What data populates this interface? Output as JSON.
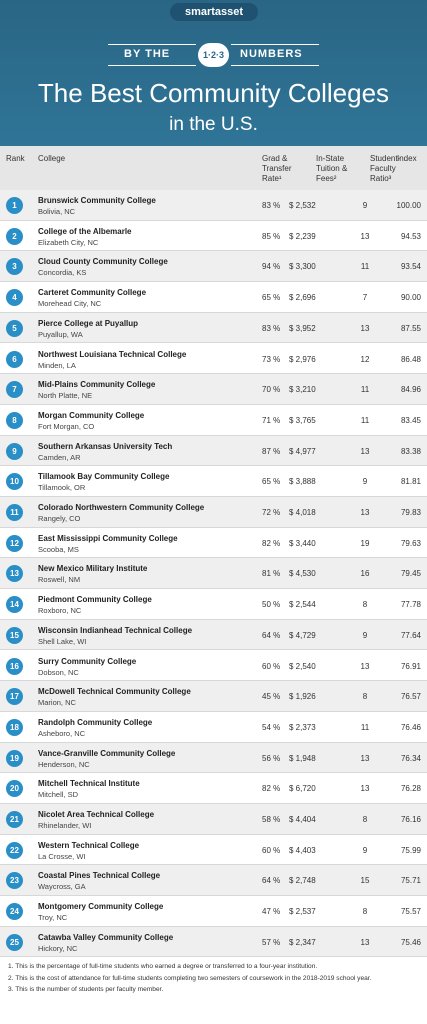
{
  "header": {
    "logo": "smartasset",
    "banner_left": "BY THE",
    "banner_badge": "1·2·3",
    "banner_right": "NUMBERS",
    "title": "The Best Community Colleges",
    "title_line2": "in the U.S."
  },
  "table": {
    "columns": [
      "Rank",
      "College",
      "Grad & Transfer Rate¹",
      "In-State Tuition & Fees²",
      "Student-Faculty Ratio³",
      "Index"
    ],
    "rows": [
      [
        "1",
        "Brunswick Community College",
        "Bolivia, NC",
        "83 %",
        "$ 2,532",
        "9",
        "100.00"
      ],
      [
        "2",
        "College of the Albemarle",
        "Elizabeth City, NC",
        "85 %",
        "$ 2,239",
        "13",
        "94.53"
      ],
      [
        "3",
        "Cloud County Community College",
        "Concordia, KS",
        "94 %",
        "$ 3,300",
        "11",
        "93.54"
      ],
      [
        "4",
        "Carteret Community College",
        "Morehead City, NC",
        "65 %",
        "$ 2,696",
        "7",
        "90.00"
      ],
      [
        "5",
        "Pierce College at Puyallup",
        "Puyallup, WA",
        "83 %",
        "$ 3,952",
        "13",
        "87.55"
      ],
      [
        "6",
        "Northwest Louisiana Technical College",
        "Minden, LA",
        "73 %",
        "$ 2,976",
        "12",
        "86.48"
      ],
      [
        "7",
        "Mid-Plains Community College",
        "North Platte, NE",
        "70 %",
        "$ 3,210",
        "11",
        "84.96"
      ],
      [
        "8",
        "Morgan Community College",
        "Fort Morgan, CO",
        "71 %",
        "$ 3,765",
        "11",
        "83.45"
      ],
      [
        "9",
        "Southern Arkansas University Tech",
        "Camden, AR",
        "87 %",
        "$ 4,977",
        "13",
        "83.38"
      ],
      [
        "10",
        "Tillamook Bay Community College",
        "Tillamook, OR",
        "65 %",
        "$ 3,888",
        "9",
        "81.81"
      ],
      [
        "11",
        "Colorado Northwestern Community College",
        "Rangely, CO",
        "72 %",
        "$ 4,018",
        "13",
        "79.83"
      ],
      [
        "12",
        "East Mississippi Community College",
        "Scooba, MS",
        "82 %",
        "$ 3,440",
        "19",
        "79.63"
      ],
      [
        "13",
        "New Mexico Military Institute",
        "Roswell, NM",
        "81 %",
        "$ 4,530",
        "16",
        "79.45"
      ],
      [
        "14",
        "Piedmont Community College",
        "Roxboro, NC",
        "50 %",
        "$ 2,544",
        "8",
        "77.78"
      ],
      [
        "15",
        "Wisconsin Indianhead Technical College",
        "Shell Lake, WI",
        "64 %",
        "$ 4,729",
        "9",
        "77.64"
      ],
      [
        "16",
        "Surry Community College",
        "Dobson, NC",
        "60 %",
        "$ 2,540",
        "13",
        "76.91"
      ],
      [
        "17",
        "McDowell Technical Community College",
        "Marion, NC",
        "45 %",
        "$ 1,926",
        "8",
        "76.57"
      ],
      [
        "18",
        "Randolph Community College",
        "Asheboro, NC",
        "54 %",
        "$ 2,373",
        "11",
        "76.46"
      ],
      [
        "19",
        "Vance-Granville Community College",
        "Henderson, NC",
        "56 %",
        "$ 1,948",
        "13",
        "76.34"
      ],
      [
        "20",
        "Mitchell Technical Institute",
        "Mitchell, SD",
        "82 %",
        "$ 6,720",
        "13",
        "76.28"
      ],
      [
        "21",
        "Nicolet Area Technical College",
        "Rhinelander, WI",
        "58 %",
        "$ 4,404",
        "8",
        "76.16"
      ],
      [
        "22",
        "Western Technical College",
        "La Crosse, WI",
        "60 %",
        "$ 4,403",
        "9",
        "75.99"
      ],
      [
        "23",
        "Coastal Pines Technical College",
        "Waycross, GA",
        "64 %",
        "$ 2,748",
        "15",
        "75.71"
      ],
      [
        "24",
        "Montgomery Community College",
        "Troy, NC",
        "47 %",
        "$ 2,537",
        "8",
        "75.57"
      ],
      [
        "25",
        "Catawba Valley Community College",
        "Hickory, NC",
        "57 %",
        "$ 2,347",
        "13",
        "75.46"
      ]
    ]
  },
  "footnotes": [
    "1. This is the percentage of full-time students who earned a degree or transferred to a four-year institution.",
    "2. This is the cost of attendance for full-time students completing two semesters of coursework in the 2018-2019 school year.",
    "3. This is the number of students per faculty member."
  ]
}
